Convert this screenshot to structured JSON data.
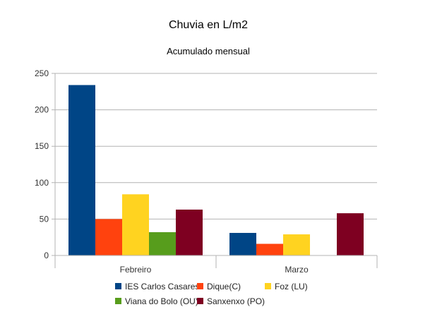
{
  "chart_data": {
    "type": "bar",
    "title": "Chuvia en L/m2",
    "subtitle": "Acumulado mensual",
    "xlabel": "",
    "ylabel": "",
    "categories": [
      "Febreiro",
      "Marzo"
    ],
    "ylim": [
      0,
      250
    ],
    "yticks": [
      0,
      50,
      100,
      150,
      200,
      250
    ],
    "grid": true,
    "legend_position": "bottom",
    "series": [
      {
        "name": "IES Carlos Casares",
        "color": "#004586",
        "values": [
          234,
          31
        ]
      },
      {
        "name": "Dique(C)",
        "color": "#ff420e",
        "values": [
          50,
          16
        ]
      },
      {
        "name": "Foz (LU)",
        "color": "#ffd320",
        "values": [
          84,
          29
        ]
      },
      {
        "name": "Viana do Bolo (OU)",
        "color": "#579d1c",
        "values": [
          32,
          0
        ]
      },
      {
        "name": "Sanxenxo (PO)",
        "color": "#7e0021",
        "values": [
          63,
          58
        ]
      }
    ]
  }
}
